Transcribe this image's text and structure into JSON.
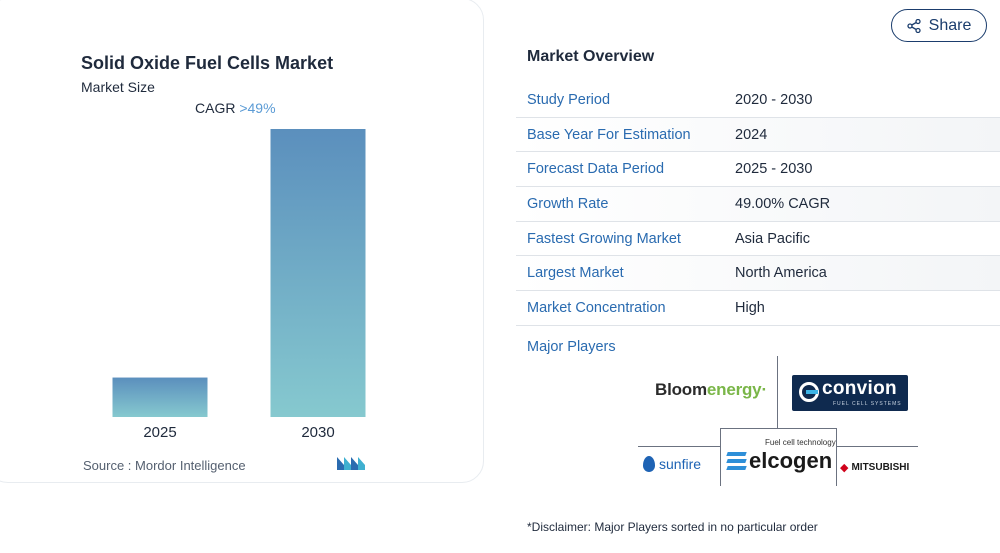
{
  "chart_data": {
    "type": "bar",
    "title": "Solid Oxide Fuel Cells Market",
    "subtitle": "Market Size",
    "categories": [
      "2025",
      "2030"
    ],
    "values": [
      1.0,
      7.3
    ],
    "cagr_label": "CAGR",
    "cagr_value": ">49%",
    "bar_gradient": [
      "#5b8fbd",
      "#86c9cf"
    ],
    "source_label": "Source :",
    "source_name": "Mordor Intelligence"
  },
  "share": {
    "label": "Share",
    "icon": "share-icon"
  },
  "overview": {
    "title": "Market Overview",
    "rows": [
      {
        "key": "Study Period",
        "value": "2020 - 2030"
      },
      {
        "key": "Base Year For Estimation",
        "value": "2024"
      },
      {
        "key": "Forecast Data Period",
        "value": "2025 - 2030"
      },
      {
        "key": "Growth Rate",
        "value": "49.00% CAGR"
      },
      {
        "key": "Fastest Growing Market",
        "value": "Asia Pacific"
      },
      {
        "key": "Largest Market",
        "value": "North America"
      },
      {
        "key": "Market Concentration",
        "value": "High"
      }
    ]
  },
  "players": {
    "label": "Major Players",
    "bloom": {
      "part1": "Bloom",
      "part2": "energy",
      "mark": "·"
    },
    "convion": {
      "name": "convion",
      "sub": "FUEL CELL SYSTEMS"
    },
    "sunfire": "sunfire",
    "elcogen": {
      "tagline": "Fuel cell technology",
      "name": "elcogen"
    },
    "mitsubishi": "MITSUBISHI"
  },
  "disclaimer": "*Disclaimer: Major Players sorted in no particular order",
  "colors": {
    "accent": "#2a6bb0",
    "brand_dark": "#1b3d6d"
  }
}
